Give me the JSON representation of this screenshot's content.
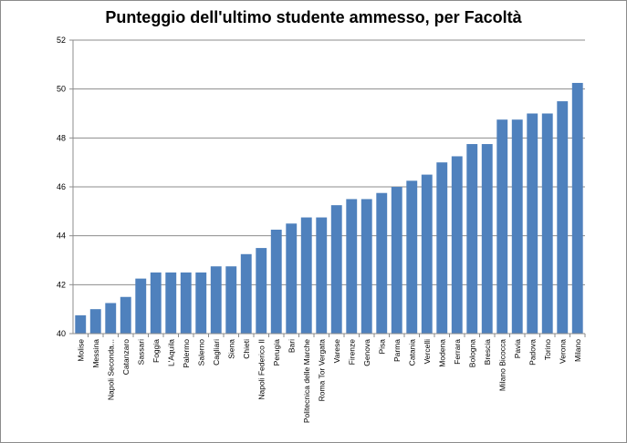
{
  "chart_data": {
    "type": "bar",
    "title": "Punteggio dell'ultimo studente ammesso, per Facoltà",
    "xlabel": "",
    "ylabel": "",
    "ylim": [
      40,
      52
    ],
    "yticks": [
      40,
      42,
      44,
      46,
      48,
      50,
      52
    ],
    "grid": true,
    "legend": "none",
    "bar_color": "#4f81bd",
    "categories": [
      "Molise",
      "Messina",
      "Napoli Seconda...",
      "Catanzaro",
      "Sassari",
      "Foggia",
      "L'Aquila",
      "Palermo",
      "Salerno",
      "Cagliari",
      "Siena",
      "Chieti",
      "Napoli Federico II",
      "Perugia",
      "Bari",
      "Politecnica delle Marche",
      "Roma Tor Vergata",
      "Varese",
      "Firenze",
      "Genova",
      "Pisa",
      "Parma",
      "Catania",
      "Vercelli",
      "Modena",
      "Ferrara",
      "Bologna",
      "Brescia",
      "Milano Bicocca",
      "Pavia",
      "Padova",
      "Torino",
      "Verona",
      "Milano"
    ],
    "values": [
      40.75,
      41.0,
      41.25,
      41.5,
      42.25,
      42.5,
      42.5,
      42.5,
      42.5,
      42.75,
      42.75,
      43.25,
      43.5,
      44.25,
      44.5,
      44.75,
      44.75,
      45.25,
      45.5,
      45.5,
      45.75,
      46.0,
      46.25,
      46.5,
      47.0,
      47.25,
      47.75,
      47.75,
      48.75,
      48.75,
      49.0,
      49.0,
      49.5,
      50.25
    ]
  }
}
